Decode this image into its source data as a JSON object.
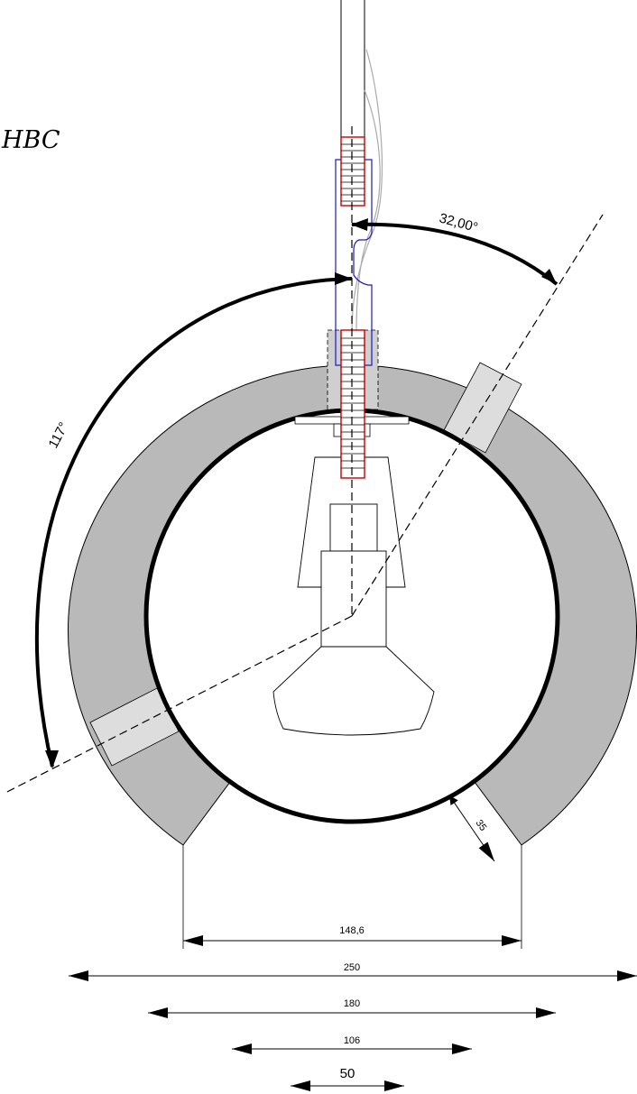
{
  "title": "HBC",
  "angles": {
    "small": "32,00°",
    "large": "117°"
  },
  "dimensions": {
    "opening": "148,6",
    "outer_diameter": "250",
    "inner_diameter": "180",
    "d106": "106",
    "d50": "50",
    "wall": "35"
  },
  "colors": {
    "ring": "#b9b9b9",
    "slot": "#dddddd",
    "red_parts": "#cc0000",
    "blue_outline": "#1a1acc"
  }
}
